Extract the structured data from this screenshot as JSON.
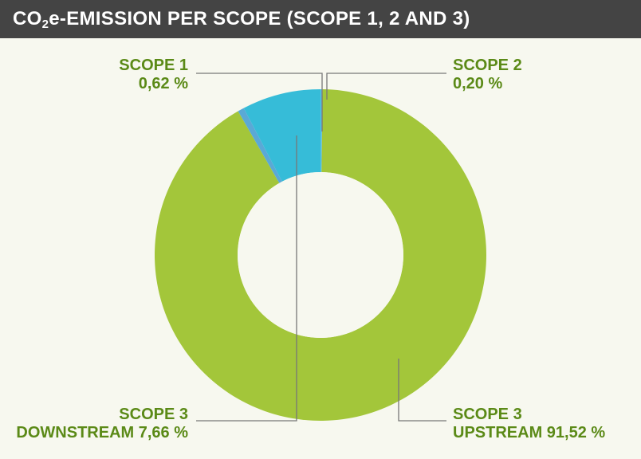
{
  "header": {
    "title_prefix": "CO",
    "title_sub": "2",
    "title_suffix": "e-EMISSION PER SCOPE (SCOPE 1, 2 AND 3)"
  },
  "colors": {
    "background": "#f7f8ef",
    "header_bg": "#444444",
    "label_text": "#5b8a17",
    "leader_line": "#777777"
  },
  "chart_data": {
    "type": "donut",
    "title": "CO2e-EMISSION PER SCOPE (SCOPE 1, 2 AND 3)",
    "unit": "%",
    "start_slice": "scope2",
    "slices": [
      {
        "key": "scope2",
        "label_line1": "SCOPE 2",
        "label_line2": "0,20 %",
        "value": 0.2,
        "color": "#5bc0e5"
      },
      {
        "key": "upstream",
        "label_line1": "SCOPE 3",
        "label_line2": "UPSTREAM 91,52 %",
        "value": 91.52,
        "color": "#a3c63a"
      },
      {
        "key": "scope1",
        "label_line1": "SCOPE 1",
        "label_line2": "0,62 %",
        "value": 0.62,
        "color": "#5aa9d6"
      },
      {
        "key": "downstream",
        "label_line1": "SCOPE 3",
        "label_line2": "DOWNSTREAM 7,66 %",
        "value": 7.66,
        "color": "#36bcd8"
      }
    ]
  }
}
